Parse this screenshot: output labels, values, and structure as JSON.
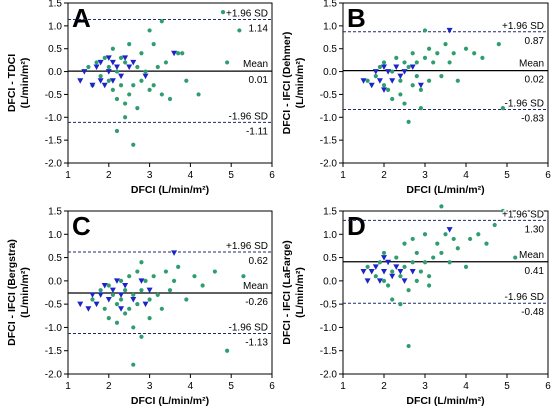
{
  "colors": {
    "green": "#2f9e6e",
    "blue": "#1a24c8",
    "line": "#000000",
    "sd_line": "#1f2a6e"
  },
  "chart_data": [
    {
      "panel_label": "A",
      "type": "scatter",
      "ylabel_line1": "DFCI - TDCI",
      "ylabel_line2": "(L/min/m²)",
      "xlabel": "DFCI (L/min/m²)",
      "xlim": [
        1,
        6
      ],
      "ylim": [
        -2.0,
        1.5
      ],
      "x_ticks": [
        "1",
        "2",
        "3",
        "4",
        "5",
        "6"
      ],
      "y_ticks": [
        "-2.0",
        "-1.5",
        "-1.0",
        "-0.5",
        "0.0",
        "0.5",
        "1.0",
        "1.5"
      ],
      "mean": 0.01,
      "upper_loa": 1.14,
      "lower_loa": -1.11,
      "mean_text": "Mean",
      "mean_value_text": "0.01",
      "upper_text": "+1.96 SD",
      "upper_value_text": "1.14",
      "lower_text": "-1.96 SD",
      "lower_value_text": "-1.11",
      "series": [
        {
          "marker": "circle",
          "points": [
            [
              1.5,
              0.1
            ],
            [
              1.6,
              -0.3
            ],
            [
              1.7,
              0.2
            ],
            [
              1.8,
              -0.1
            ],
            [
              1.9,
              0.3
            ],
            [
              2.0,
              -0.2
            ],
            [
              2.0,
              0.1
            ],
            [
              2.1,
              -0.4
            ],
            [
              2.1,
              0.5
            ],
            [
              2.2,
              -0.6
            ],
            [
              2.2,
              0.0
            ],
            [
              2.3,
              0.3
            ],
            [
              2.3,
              -0.3
            ],
            [
              2.4,
              -0.7
            ],
            [
              2.4,
              0.2
            ],
            [
              2.5,
              -0.5
            ],
            [
              2.5,
              0.6
            ],
            [
              2.6,
              -1.6
            ],
            [
              2.6,
              -0.3
            ],
            [
              2.7,
              0.1
            ],
            [
              2.7,
              -0.8
            ],
            [
              2.8,
              0.4
            ],
            [
              2.8,
              -0.2
            ],
            [
              2.9,
              0.0
            ],
            [
              3.0,
              -0.4
            ],
            [
              3.0,
              0.9
            ],
            [
              3.1,
              -0.3
            ],
            [
              3.1,
              0.6
            ],
            [
              3.2,
              0.1
            ],
            [
              3.3,
              -0.5
            ],
            [
              3.3,
              1.1
            ],
            [
              3.4,
              0.2
            ],
            [
              3.5,
              -0.6
            ],
            [
              3.7,
              0.4
            ],
            [
              3.9,
              -0.2
            ],
            [
              4.2,
              -0.5
            ],
            [
              2.2,
              -1.3
            ],
            [
              2.4,
              -1.0
            ],
            [
              4.9,
              0.2
            ],
            [
              5.2,
              0.9
            ],
            [
              4.8,
              1.3
            ],
            [
              3.8,
              0.4
            ]
          ]
        },
        {
          "marker": "triangle",
          "points": [
            [
              1.3,
              -0.2
            ],
            [
              1.4,
              0.0
            ],
            [
              1.6,
              -0.3
            ],
            [
              1.7,
              0.1
            ],
            [
              1.8,
              -0.2
            ],
            [
              1.8,
              0.2
            ],
            [
              1.9,
              -0.3
            ],
            [
              2.0,
              0.3
            ],
            [
              2.0,
              0.0
            ],
            [
              2.1,
              -0.2
            ],
            [
              2.1,
              0.2
            ],
            [
              2.2,
              0.1
            ],
            [
              2.3,
              -0.1
            ],
            [
              2.4,
              0.3
            ],
            [
              2.5,
              0.1
            ],
            [
              2.6,
              0.2
            ],
            [
              2.9,
              -0.1
            ],
            [
              3.6,
              0.4
            ]
          ]
        }
      ]
    },
    {
      "panel_label": "B",
      "type": "scatter",
      "ylabel_line1": "DFCI - IFCI (Dehmer)",
      "ylabel_line2": "(L/min/m²)",
      "xlabel": "DFCI (L/min/m²)",
      "xlim": [
        1,
        6
      ],
      "ylim": [
        -2.0,
        1.5
      ],
      "x_ticks": [
        "1",
        "2",
        "3",
        "4",
        "5",
        "6"
      ],
      "y_ticks": [
        "-2.0",
        "-1.5",
        "-1.0",
        "-0.5",
        "0.0",
        "0.5",
        "1.0",
        "1.5"
      ],
      "mean": 0.02,
      "upper_loa": 0.87,
      "lower_loa": -0.83,
      "mean_text": "Mean",
      "mean_value_text": "0.02",
      "upper_text": "+1.96 SD",
      "upper_value_text": "0.87",
      "lower_text": "-1.96 SD",
      "lower_value_text": "-0.83",
      "series": [
        {
          "marker": "circle",
          "points": [
            [
              1.6,
              -0.2
            ],
            [
              1.8,
              -0.1
            ],
            [
              1.9,
              0.1
            ],
            [
              2.0,
              -0.3
            ],
            [
              2.0,
              0.2
            ],
            [
              2.1,
              -0.4
            ],
            [
              2.2,
              0.0
            ],
            [
              2.2,
              -0.6
            ],
            [
              2.3,
              0.3
            ],
            [
              2.4,
              -0.2
            ],
            [
              2.4,
              -0.5
            ],
            [
              2.5,
              0.2
            ],
            [
              2.5,
              -0.7
            ],
            [
              2.6,
              0.1
            ],
            [
              2.7,
              -0.3
            ],
            [
              2.7,
              0.4
            ],
            [
              2.8,
              -0.1
            ],
            [
              2.8,
              0.2
            ],
            [
              2.9,
              -0.4
            ],
            [
              3.0,
              0.3
            ],
            [
              3.1,
              0.5
            ],
            [
              3.1,
              -0.2
            ],
            [
              3.2,
              0.2
            ],
            [
              3.3,
              0.4
            ],
            [
              3.4,
              -0.1
            ],
            [
              3.5,
              0.6
            ],
            [
              3.6,
              0.2
            ],
            [
              3.7,
              0.4
            ],
            [
              3.8,
              -0.2
            ],
            [
              4.0,
              0.5
            ],
            [
              4.2,
              0.4
            ],
            [
              4.4,
              0.3
            ],
            [
              4.8,
              0.6
            ],
            [
              4.9,
              -0.8
            ],
            [
              2.6,
              -1.1
            ],
            [
              2.9,
              -0.8
            ],
            [
              3.0,
              0.9
            ]
          ]
        },
        {
          "marker": "triangle",
          "points": [
            [
              1.5,
              -0.2
            ],
            [
              1.7,
              -0.3
            ],
            [
              1.8,
              0.0
            ],
            [
              1.9,
              -0.2
            ],
            [
              2.0,
              0.1
            ],
            [
              2.0,
              -0.4
            ],
            [
              2.1,
              0.0
            ],
            [
              2.2,
              -0.2
            ],
            [
              2.3,
              0.1
            ],
            [
              2.4,
              -0.1
            ],
            [
              2.5,
              0.0
            ],
            [
              2.7,
              0.1
            ],
            [
              2.9,
              -0.3
            ],
            [
              3.6,
              0.9
            ]
          ]
        }
      ]
    },
    {
      "panel_label": "C",
      "type": "scatter",
      "ylabel_line1": "DFCI - IFCI (Bergstra)",
      "ylabel_line2": "(L/min/m²)",
      "xlabel": "DFCI (L/min/m²)",
      "xlim": [
        1,
        6
      ],
      "ylim": [
        -2.0,
        1.5
      ],
      "x_ticks": [
        "1",
        "2",
        "3",
        "4",
        "5",
        "6"
      ],
      "y_ticks": [
        "-2.0",
        "-1.5",
        "-1.0",
        "-0.5",
        "0.0",
        "0.5",
        "1.0",
        "1.5"
      ],
      "mean": -0.26,
      "upper_loa": 0.62,
      "lower_loa": -1.13,
      "mean_text": "Mean",
      "mean_value_text": "-0.26",
      "upper_text": "+1.96 SD",
      "upper_value_text": "0.62",
      "lower_text": "-1.96 SD",
      "lower_value_text": "-1.13",
      "series": [
        {
          "marker": "circle",
          "points": [
            [
              1.6,
              -0.4
            ],
            [
              1.8,
              -0.2
            ],
            [
              1.9,
              -0.6
            ],
            [
              2.0,
              -0.1
            ],
            [
              2.0,
              -0.8
            ],
            [
              2.1,
              -0.3
            ],
            [
              2.2,
              -0.5
            ],
            [
              2.2,
              -0.9
            ],
            [
              2.3,
              0.0
            ],
            [
              2.3,
              -0.4
            ],
            [
              2.4,
              -0.7
            ],
            [
              2.4,
              -0.2
            ],
            [
              2.5,
              0.1
            ],
            [
              2.5,
              -0.6
            ],
            [
              2.6,
              -1.0
            ],
            [
              2.6,
              -0.3
            ],
            [
              2.7,
              0.2
            ],
            [
              2.7,
              -0.5
            ],
            [
              2.8,
              -0.2
            ],
            [
              2.8,
              -1.2
            ],
            [
              2.9,
              0.0
            ],
            [
              3.0,
              -0.4
            ],
            [
              3.1,
              0.1
            ],
            [
              3.2,
              -0.3
            ],
            [
              3.3,
              -0.6
            ],
            [
              3.4,
              0.2
            ],
            [
              3.5,
              -0.2
            ],
            [
              3.6,
              0.0
            ],
            [
              3.7,
              0.3
            ],
            [
              3.9,
              -0.4
            ],
            [
              4.1,
              0.1
            ],
            [
              4.3,
              -0.1
            ],
            [
              4.6,
              0.2
            ],
            [
              4.9,
              -1.5
            ],
            [
              2.6,
              -1.8
            ],
            [
              2.8,
              0.4
            ],
            [
              5.3,
              0.1
            ],
            [
              3.0,
              -0.8
            ]
          ]
        },
        {
          "marker": "triangle",
          "points": [
            [
              1.3,
              -0.5
            ],
            [
              1.5,
              -0.6
            ],
            [
              1.6,
              -0.3
            ],
            [
              1.7,
              -0.5
            ],
            [
              1.8,
              -0.3
            ],
            [
              1.9,
              -0.1
            ],
            [
              2.0,
              -0.4
            ],
            [
              2.1,
              -0.2
            ],
            [
              2.2,
              0.0
            ],
            [
              2.3,
              -0.3
            ],
            [
              2.4,
              -0.1
            ],
            [
              2.6,
              -0.4
            ],
            [
              2.8,
              0.0
            ],
            [
              2.9,
              -0.5
            ],
            [
              3.0,
              -0.2
            ],
            [
              3.6,
              0.6
            ],
            [
              2.3,
              -0.6
            ]
          ]
        }
      ]
    },
    {
      "panel_label": "D",
      "type": "scatter",
      "ylabel_line1": "DFCI - IFCI (LaFarge)",
      "ylabel_line2": "(L/min/m²)",
      "xlabel": "DFCI (L/min/m²)",
      "xlim": [
        1,
        6
      ],
      "ylim": [
        -2.0,
        1.5
      ],
      "x_ticks": [
        "1",
        "2",
        "3",
        "4",
        "5",
        "6"
      ],
      "y_ticks": [
        "-2.0",
        "-1.5",
        "-1.0",
        "-0.5",
        "0.0",
        "0.5",
        "1.0",
        "1.5"
      ],
      "mean": 0.41,
      "upper_loa": 1.3,
      "lower_loa": -0.48,
      "mean_text": "Mean",
      "mean_value_text": "0.41",
      "upper_text": "+1.96 SD",
      "upper_value_text": "1.30",
      "lower_text": "-1.96 SD",
      "lower_value_text": "-0.48",
      "series": [
        {
          "marker": "circle",
          "points": [
            [
              1.6,
              0.3
            ],
            [
              1.8,
              0.1
            ],
            [
              1.9,
              0.4
            ],
            [
              2.0,
              0.0
            ],
            [
              2.0,
              0.6
            ],
            [
              2.1,
              -0.1
            ],
            [
              2.2,
              0.2
            ],
            [
              2.2,
              -0.4
            ],
            [
              2.3,
              0.5
            ],
            [
              2.4,
              0.1
            ],
            [
              2.4,
              -0.5
            ],
            [
              2.5,
              0.3
            ],
            [
              2.5,
              0.8
            ],
            [
              2.6,
              -0.2
            ],
            [
              2.7,
              0.4
            ],
            [
              2.7,
              0.9
            ],
            [
              2.8,
              0.0
            ],
            [
              2.8,
              0.6
            ],
            [
              2.9,
              0.2
            ],
            [
              3.0,
              1.0
            ],
            [
              3.0,
              0.4
            ],
            [
              3.1,
              -0.1
            ],
            [
              3.2,
              0.5
            ],
            [
              3.3,
              0.8
            ],
            [
              3.4,
              0.6
            ],
            [
              3.5,
              1.0
            ],
            [
              3.6,
              0.4
            ],
            [
              3.7,
              0.9
            ],
            [
              3.8,
              0.7
            ],
            [
              4.0,
              0.3
            ],
            [
              4.1,
              0.9
            ],
            [
              4.3,
              1.0
            ],
            [
              4.5,
              0.8
            ],
            [
              4.7,
              1.2
            ],
            [
              4.9,
              1.5
            ],
            [
              5.2,
              0.5
            ],
            [
              2.6,
              -1.4
            ],
            [
              3.4,
              1.6
            ],
            [
              3.1,
              0.1
            ]
          ]
        },
        {
          "marker": "triangle",
          "points": [
            [
              1.5,
              0.2
            ],
            [
              1.6,
              0.0
            ],
            [
              1.7,
              0.2
            ],
            [
              1.8,
              0.3
            ],
            [
              1.9,
              0.0
            ],
            [
              2.0,
              0.2
            ],
            [
              2.1,
              0.4
            ],
            [
              2.2,
              0.1
            ],
            [
              2.3,
              0.3
            ],
            [
              2.4,
              0.2
            ],
            [
              2.5,
              0.0
            ],
            [
              2.7,
              0.2
            ],
            [
              3.6,
              1.1
            ],
            [
              2.0,
              0.5
            ]
          ]
        }
      ]
    }
  ]
}
